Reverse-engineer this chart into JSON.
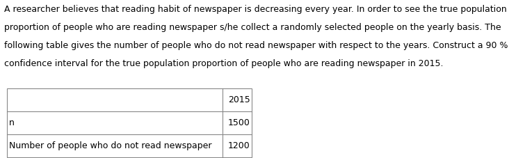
{
  "background_color": "#ffffff",
  "text_line1": "A researcher believes that reading habit of newspaper is decreasing every year. In order to see the true population",
  "text_line2": "proportion of people who are reading newspaper s/he collect a randomly selected people on the yearly basis. The",
  "text_line3": "following table gives the number of people who do not read newspaper with respect to the years. Construct a 90 %",
  "text_line4": "confidence interval for the true population proportion of people who are reading newspaper in 2015.",
  "text_fontsize": 9.0,
  "col_header": "2015",
  "row1_label": "n",
  "row1_value": "1500",
  "row2_label": "Number of people who do not read newspaper",
  "row2_value": "1200",
  "table_fontsize": 9.0,
  "line_color": "#888888"
}
